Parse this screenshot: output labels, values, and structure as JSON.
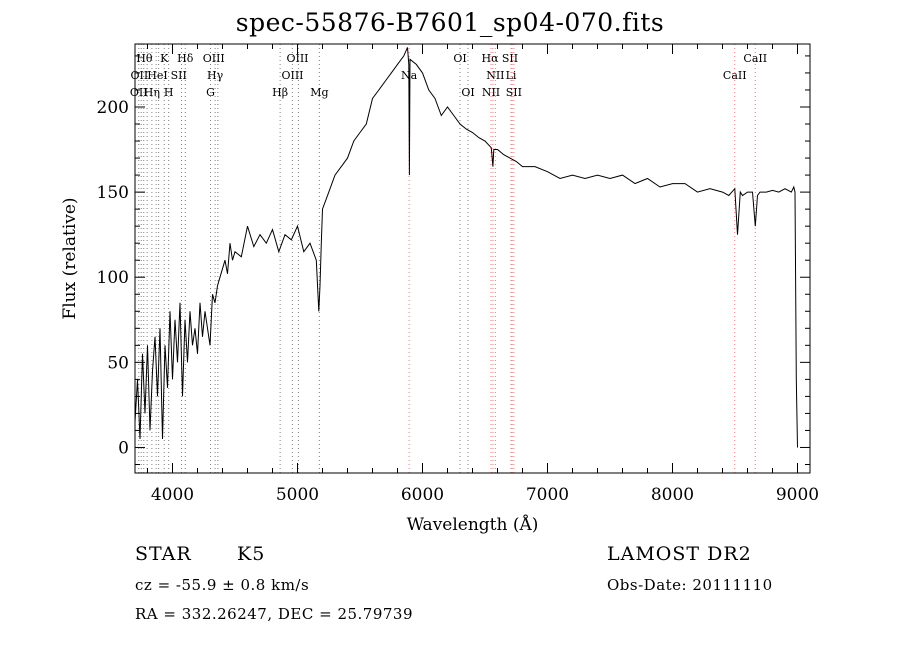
{
  "chart_data": {
    "type": "line",
    "title": "spec-55876-B7601_sp04-070.fits",
    "xlabel": "Wavelength (Å)",
    "ylabel": "Flux (relative)",
    "xlim": [
      3700,
      9100
    ],
    "ylim": [
      -15,
      237
    ],
    "xticks": [
      4000,
      5000,
      6000,
      7000,
      8000,
      9000
    ],
    "yticks": [
      0,
      50,
      100,
      150,
      200
    ],
    "grid": false,
    "series": [
      {
        "values_x": [
          3700,
          3720,
          3740,
          3760,
          3780,
          3800,
          3820,
          3840,
          3860,
          3880,
          3900,
          3920,
          3940,
          3960,
          3980,
          4000,
          4020,
          4040,
          4060,
          4080,
          4100,
          4120,
          4140,
          4160,
          4180,
          4200,
          4220,
          4240,
          4260,
          4280,
          4300,
          4320,
          4340,
          4360,
          4380,
          4400,
          4420,
          4440,
          4460,
          4480,
          4500,
          4550,
          4600,
          4650,
          4700,
          4750,
          4800,
          4850,
          4900,
          4950,
          5000,
          5050,
          5100,
          5150,
          5170,
          5180,
          5190,
          5200,
          5250,
          5300,
          5350,
          5400,
          5450,
          5500,
          5550,
          5600,
          5650,
          5700,
          5750,
          5800,
          5850,
          5880,
          5890,
          5895,
          5900,
          5950,
          6000,
          6050,
          6100,
          6150,
          6200,
          6250,
          6300,
          6350,
          6400,
          6450,
          6500,
          6550,
          6563,
          6570,
          6600,
          6650,
          6700,
          6750,
          6800,
          6900,
          7000,
          7100,
          7200,
          7300,
          7400,
          7500,
          7600,
          7700,
          7800,
          7900,
          8000,
          8100,
          8200,
          8300,
          8400,
          8450,
          8498,
          8520,
          8542,
          8560,
          8600,
          8640,
          8662,
          8680,
          8700,
          8750,
          8800,
          8850,
          8900,
          8950,
          8970,
          8980,
          8990,
          9000
        ],
        "values_y": [
          15,
          40,
          5,
          55,
          20,
          60,
          10,
          45,
          65,
          30,
          70,
          5,
          60,
          35,
          80,
          40,
          75,
          50,
          85,
          30,
          75,
          50,
          80,
          60,
          70,
          55,
          85,
          65,
          80,
          70,
          60,
          90,
          85,
          95,
          100,
          105,
          110,
          102,
          120,
          110,
          115,
          112,
          130,
          118,
          125,
          120,
          128,
          115,
          125,
          122,
          130,
          115,
          120,
          110,
          80,
          95,
          120,
          140,
          150,
          160,
          165,
          170,
          180,
          185,
          190,
          205,
          210,
          215,
          220,
          225,
          230,
          235,
          225,
          160,
          228,
          225,
          220,
          210,
          205,
          195,
          200,
          195,
          190,
          187,
          185,
          182,
          180,
          176,
          165,
          175,
          175,
          172,
          170,
          168,
          165,
          165,
          162,
          158,
          160,
          158,
          160,
          158,
          160,
          155,
          158,
          153,
          155,
          155,
          150,
          152,
          150,
          148,
          152,
          125,
          150,
          148,
          150,
          150,
          130,
          148,
          150,
          150,
          151,
          150,
          152,
          150,
          153,
          150,
          40,
          0
        ],
        "stroke": "#000000"
      }
    ],
    "lines": [
      {
        "wl": 3730,
        "color": "#808080",
        "top": [
          "OII"
        ]
      },
      {
        "wl": 3750,
        "color": "#808080",
        "top": [
          "OII"
        ]
      },
      {
        "wl": 3770,
        "color": "#808080",
        "top": [
          "Hθ"
        ]
      },
      {
        "wl": 3797,
        "color": "#808080",
        "top": [
          "Hθ"
        ]
      },
      {
        "wl": 3835,
        "color": "#808080",
        "top": [
          "Hη"
        ]
      },
      {
        "wl": 3869,
        "color": "#808080",
        "top": [
          "HeI"
        ]
      },
      {
        "wl": 3889,
        "color": "#808080",
        "top": [
          "HeI"
        ]
      },
      {
        "wl": 3934,
        "color": "#808080",
        "top": [
          "K"
        ]
      },
      {
        "wl": 3969,
        "color": "#808080",
        "top": [
          "H"
        ]
      },
      {
        "wl": 4072,
        "color": "#808080",
        "top": [
          "SII"
        ]
      },
      {
        "wl": 4102,
        "color": "#808080",
        "top": [
          "Hδ"
        ]
      },
      {
        "wl": 4304,
        "color": "#808080",
        "top": [
          "G"
        ]
      },
      {
        "wl": 4341,
        "color": "#808080",
        "top": [
          "Hγ"
        ]
      },
      {
        "wl": 4363,
        "color": "#808080",
        "top": [
          "OIII"
        ]
      },
      {
        "wl": 4861,
        "color": "#808080",
        "top": [
          "Hβ"
        ]
      },
      {
        "wl": 4959,
        "color": "#808080",
        "top": [
          "OIII"
        ]
      },
      {
        "wl": 5007,
        "color": "#808080",
        "top": [
          "OIII"
        ]
      },
      {
        "wl": 5175,
        "color": "#808080",
        "top": [
          "Mg"
        ]
      },
      {
        "wl": 5893,
        "color": "#e08080",
        "top": [
          "Na"
        ]
      },
      {
        "wl": 6300,
        "color": "#808080",
        "top": [
          "OI"
        ]
      },
      {
        "wl": 6364,
        "color": "#808080",
        "top": [
          "OI"
        ]
      },
      {
        "wl": 6548,
        "color": "#e08080",
        "top": [
          "NII"
        ]
      },
      {
        "wl": 6563,
        "color": "#e08080",
        "top": [
          "Hα"
        ]
      },
      {
        "wl": 6583,
        "color": "#e08080",
        "top": [
          "NII"
        ]
      },
      {
        "wl": 6708,
        "color": "#e08080",
        "top": [
          "Li"
        ]
      },
      {
        "wl": 6717,
        "color": "#e08080",
        "top": [
          "SII"
        ]
      },
      {
        "wl": 6731,
        "color": "#e08080",
        "top": [
          "SII"
        ]
      },
      {
        "wl": 8498,
        "color": "#e08080",
        "top": [
          "CaII"
        ]
      },
      {
        "wl": 8662,
        "color": "#e08080",
        "top": [
          "CaII"
        ]
      }
    ],
    "line_labels": [
      {
        "text": "Hθ",
        "wl": 3775,
        "row": 1
      },
      {
        "text": "K",
        "wl": 3934,
        "row": 1
      },
      {
        "text": "Hδ",
        "wl": 4102,
        "row": 1
      },
      {
        "text": "OIII",
        "wl": 4330,
        "row": 1
      },
      {
        "text": "OIII",
        "wl": 5000,
        "row": 1
      },
      {
        "text": "OI",
        "wl": 6300,
        "row": 1
      },
      {
        "text": "Hα",
        "wl": 6540,
        "row": 1
      },
      {
        "text": "SII",
        "wl": 6700,
        "row": 1
      },
      {
        "text": "CaII",
        "wl": 8662,
        "row": 1
      },
      {
        "text": "OII",
        "wl": 3735,
        "row": 2
      },
      {
        "text": "HeI",
        "wl": 3880,
        "row": 2
      },
      {
        "text": "SII",
        "wl": 4050,
        "row": 2
      },
      {
        "text": "Hγ",
        "wl": 4341,
        "row": 2
      },
      {
        "text": "OIII",
        "wl": 4960,
        "row": 2
      },
      {
        "text": "Na",
        "wl": 5893,
        "row": 2
      },
      {
        "text": "NII",
        "wl": 6583,
        "row": 2
      },
      {
        "text": "Li",
        "wl": 6708,
        "row": 2
      },
      {
        "text": "CaII",
        "wl": 8498,
        "row": 2
      },
      {
        "text": "OII",
        "wl": 3730,
        "row": 3
      },
      {
        "text": "Hη",
        "wl": 3835,
        "row": 3
      },
      {
        "text": "H",
        "wl": 3969,
        "row": 3
      },
      {
        "text": "G",
        "wl": 4304,
        "row": 3
      },
      {
        "text": "Hβ",
        "wl": 4861,
        "row": 3
      },
      {
        "text": "Mg",
        "wl": 5175,
        "row": 3
      },
      {
        "text": "OI",
        "wl": 6364,
        "row": 3
      },
      {
        "text": "NII",
        "wl": 6548,
        "row": 3
      },
      {
        "text": "SII",
        "wl": 6731,
        "row": 3
      }
    ]
  },
  "info": {
    "class": "STAR",
    "subclass": "K5",
    "survey": "LAMOST DR2",
    "cz": "cz = -55.9 ± 0.8 km/s",
    "obs_date": "Obs-Date: 20111110",
    "coords": "RA = 332.26247, DEC =  25.79739"
  }
}
